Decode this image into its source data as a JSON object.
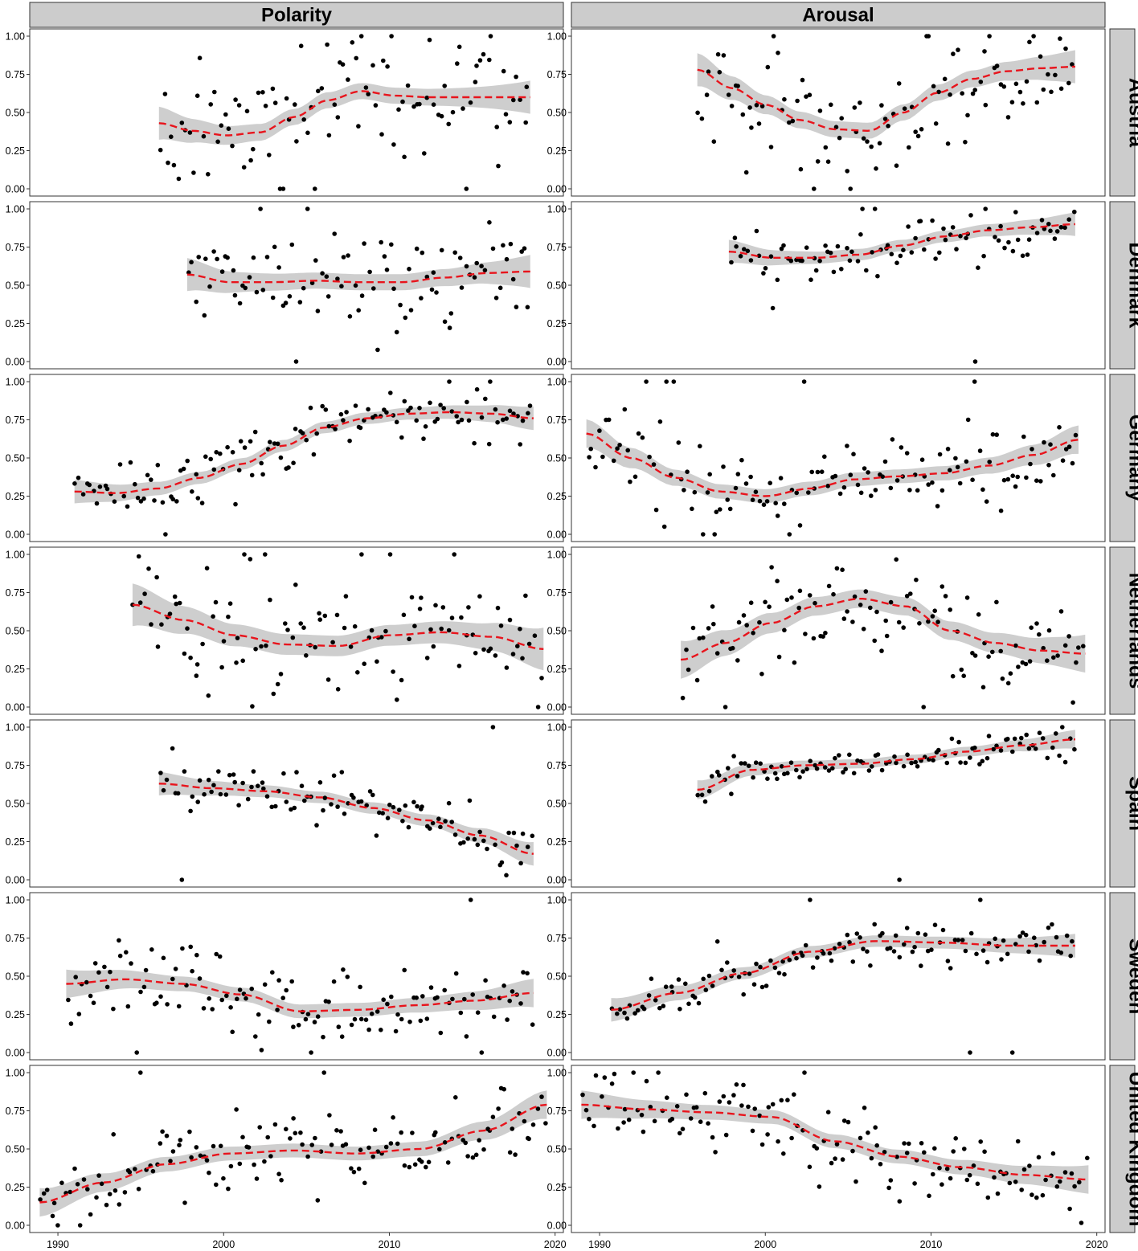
{
  "chart_data": {
    "type": "scatter",
    "columns": [
      "Polarity",
      "Arousal"
    ],
    "rows": [
      "Austria",
      "Denmark",
      "Germany",
      "Netherlands",
      "Spain",
      "Sweden",
      "United Kingdom"
    ],
    "x_ticks": [
      1990,
      2000,
      2010,
      2020
    ],
    "x_range": [
      1988.3,
      2020.5
    ],
    "y_ticks": [
      "0.00",
      "0.25",
      "0.50",
      "0.75",
      "1.00"
    ],
    "y_range": [
      0,
      1
    ],
    "grid": false,
    "colors": {
      "points": "#000000",
      "trend_line": "#e8141c",
      "confidence_band": "#bdbdbd",
      "strip_fill": "#cccccc"
    },
    "panels": [
      {
        "row": "Austria",
        "col": "Polarity",
        "x_start": 1996.1,
        "x_end": 2018.5,
        "trend": [
          0.43,
          0.38,
          0.35,
          0.37,
          0.47,
          0.58,
          0.64,
          0.61,
          0.6,
          0.6,
          0.6,
          0.6
        ],
        "band_halfwidth": 0.07,
        "noise": 0.2,
        "seed": 11
      },
      {
        "row": "Austria",
        "col": "Arousal",
        "x_start": 1995.9,
        "x_end": 2018.7,
        "trend": [
          0.78,
          0.66,
          0.55,
          0.45,
          0.39,
          0.38,
          0.5,
          0.63,
          0.72,
          0.77,
          0.79,
          0.8
        ],
        "band_halfwidth": 0.07,
        "noise": 0.18,
        "seed": 23
      },
      {
        "row": "Denmark",
        "col": "Polarity",
        "x_start": 1997.8,
        "x_end": 2018.5,
        "trend": [
          0.57,
          0.52,
          0.52,
          0.53,
          0.52,
          0.52,
          0.55,
          0.58,
          0.59
        ],
        "band_halfwidth": 0.07,
        "noise": 0.18,
        "seed": 37
      },
      {
        "row": "Denmark",
        "col": "Arousal",
        "x_start": 1997.8,
        "x_end": 2018.7,
        "trend": [
          0.72,
          0.68,
          0.68,
          0.7,
          0.76,
          0.82,
          0.86,
          0.88,
          0.9
        ],
        "band_halfwidth": 0.05,
        "noise": 0.09,
        "seed": 41
      },
      {
        "row": "Germany",
        "col": "Polarity",
        "x_start": 1991.0,
        "x_end": 2018.7,
        "trend": [
          0.28,
          0.27,
          0.3,
          0.37,
          0.46,
          0.58,
          0.7,
          0.76,
          0.79,
          0.8,
          0.79,
          0.76
        ],
        "band_halfwidth": 0.05,
        "noise": 0.09,
        "seed": 53
      },
      {
        "row": "Germany",
        "col": "Arousal",
        "x_start": 1989.2,
        "x_end": 2018.9,
        "trend": [
          0.66,
          0.5,
          0.37,
          0.28,
          0.25,
          0.3,
          0.36,
          0.38,
          0.4,
          0.45,
          0.52,
          0.62
        ],
        "band_halfwidth": 0.06,
        "noise": 0.13,
        "seed": 67
      },
      {
        "row": "Netherlands",
        "col": "Polarity",
        "x_start": 1994.5,
        "x_end": 2019.3,
        "trend": [
          0.67,
          0.57,
          0.47,
          0.41,
          0.4,
          0.47,
          0.49,
          0.46,
          0.38
        ],
        "band_halfwidth": 0.09,
        "noise": 0.2,
        "seed": 79
      },
      {
        "row": "Netherlands",
        "col": "Arousal",
        "x_start": 1994.9,
        "x_end": 2019.3,
        "trend": [
          0.31,
          0.42,
          0.55,
          0.66,
          0.71,
          0.66,
          0.5,
          0.42,
          0.37,
          0.35
        ],
        "band_halfwidth": 0.08,
        "noise": 0.17,
        "seed": 83
      },
      {
        "row": "Spain",
        "col": "Polarity",
        "x_start": 1996.1,
        "x_end": 2018.7,
        "trend": [
          0.63,
          0.6,
          0.58,
          0.54,
          0.47,
          0.39,
          0.29,
          0.17
        ],
        "band_halfwidth": 0.05,
        "noise": 0.08,
        "seed": 97
      },
      {
        "row": "Spain",
        "col": "Arousal",
        "x_start": 1995.9,
        "x_end": 2018.7,
        "trend": [
          0.59,
          0.72,
          0.75,
          0.76,
          0.79,
          0.84,
          0.88,
          0.92
        ],
        "band_halfwidth": 0.04,
        "noise": 0.05,
        "seed": 101
      },
      {
        "row": "Sweden",
        "col": "Polarity",
        "x_start": 1990.5,
        "x_end": 2018.7,
        "trend": [
          0.45,
          0.48,
          0.45,
          0.38,
          0.27,
          0.28,
          0.31,
          0.34,
          0.39
        ],
        "band_halfwidth": 0.06,
        "noise": 0.13,
        "seed": 113
      },
      {
        "row": "Sweden",
        "col": "Arousal",
        "x_start": 1990.7,
        "x_end": 2018.7,
        "trend": [
          0.28,
          0.39,
          0.52,
          0.66,
          0.73,
          0.72,
          0.7,
          0.7
        ],
        "band_halfwidth": 0.05,
        "noise": 0.07,
        "seed": 127
      },
      {
        "row": "United Kingdom",
        "col": "Polarity",
        "x_start": 1988.9,
        "x_end": 2019.5,
        "trend": [
          0.15,
          0.28,
          0.4,
          0.47,
          0.49,
          0.47,
          0.5,
          0.62,
          0.79
        ],
        "band_halfwidth": 0.06,
        "noise": 0.12,
        "seed": 131
      },
      {
        "row": "United Kingdom",
        "col": "Arousal",
        "x_start": 1988.9,
        "x_end": 2019.5,
        "trend": [
          0.79,
          0.76,
          0.74,
          0.71,
          0.55,
          0.45,
          0.38,
          0.33,
          0.3
        ],
        "band_halfwidth": 0.06,
        "noise": 0.12,
        "seed": 149
      }
    ]
  }
}
